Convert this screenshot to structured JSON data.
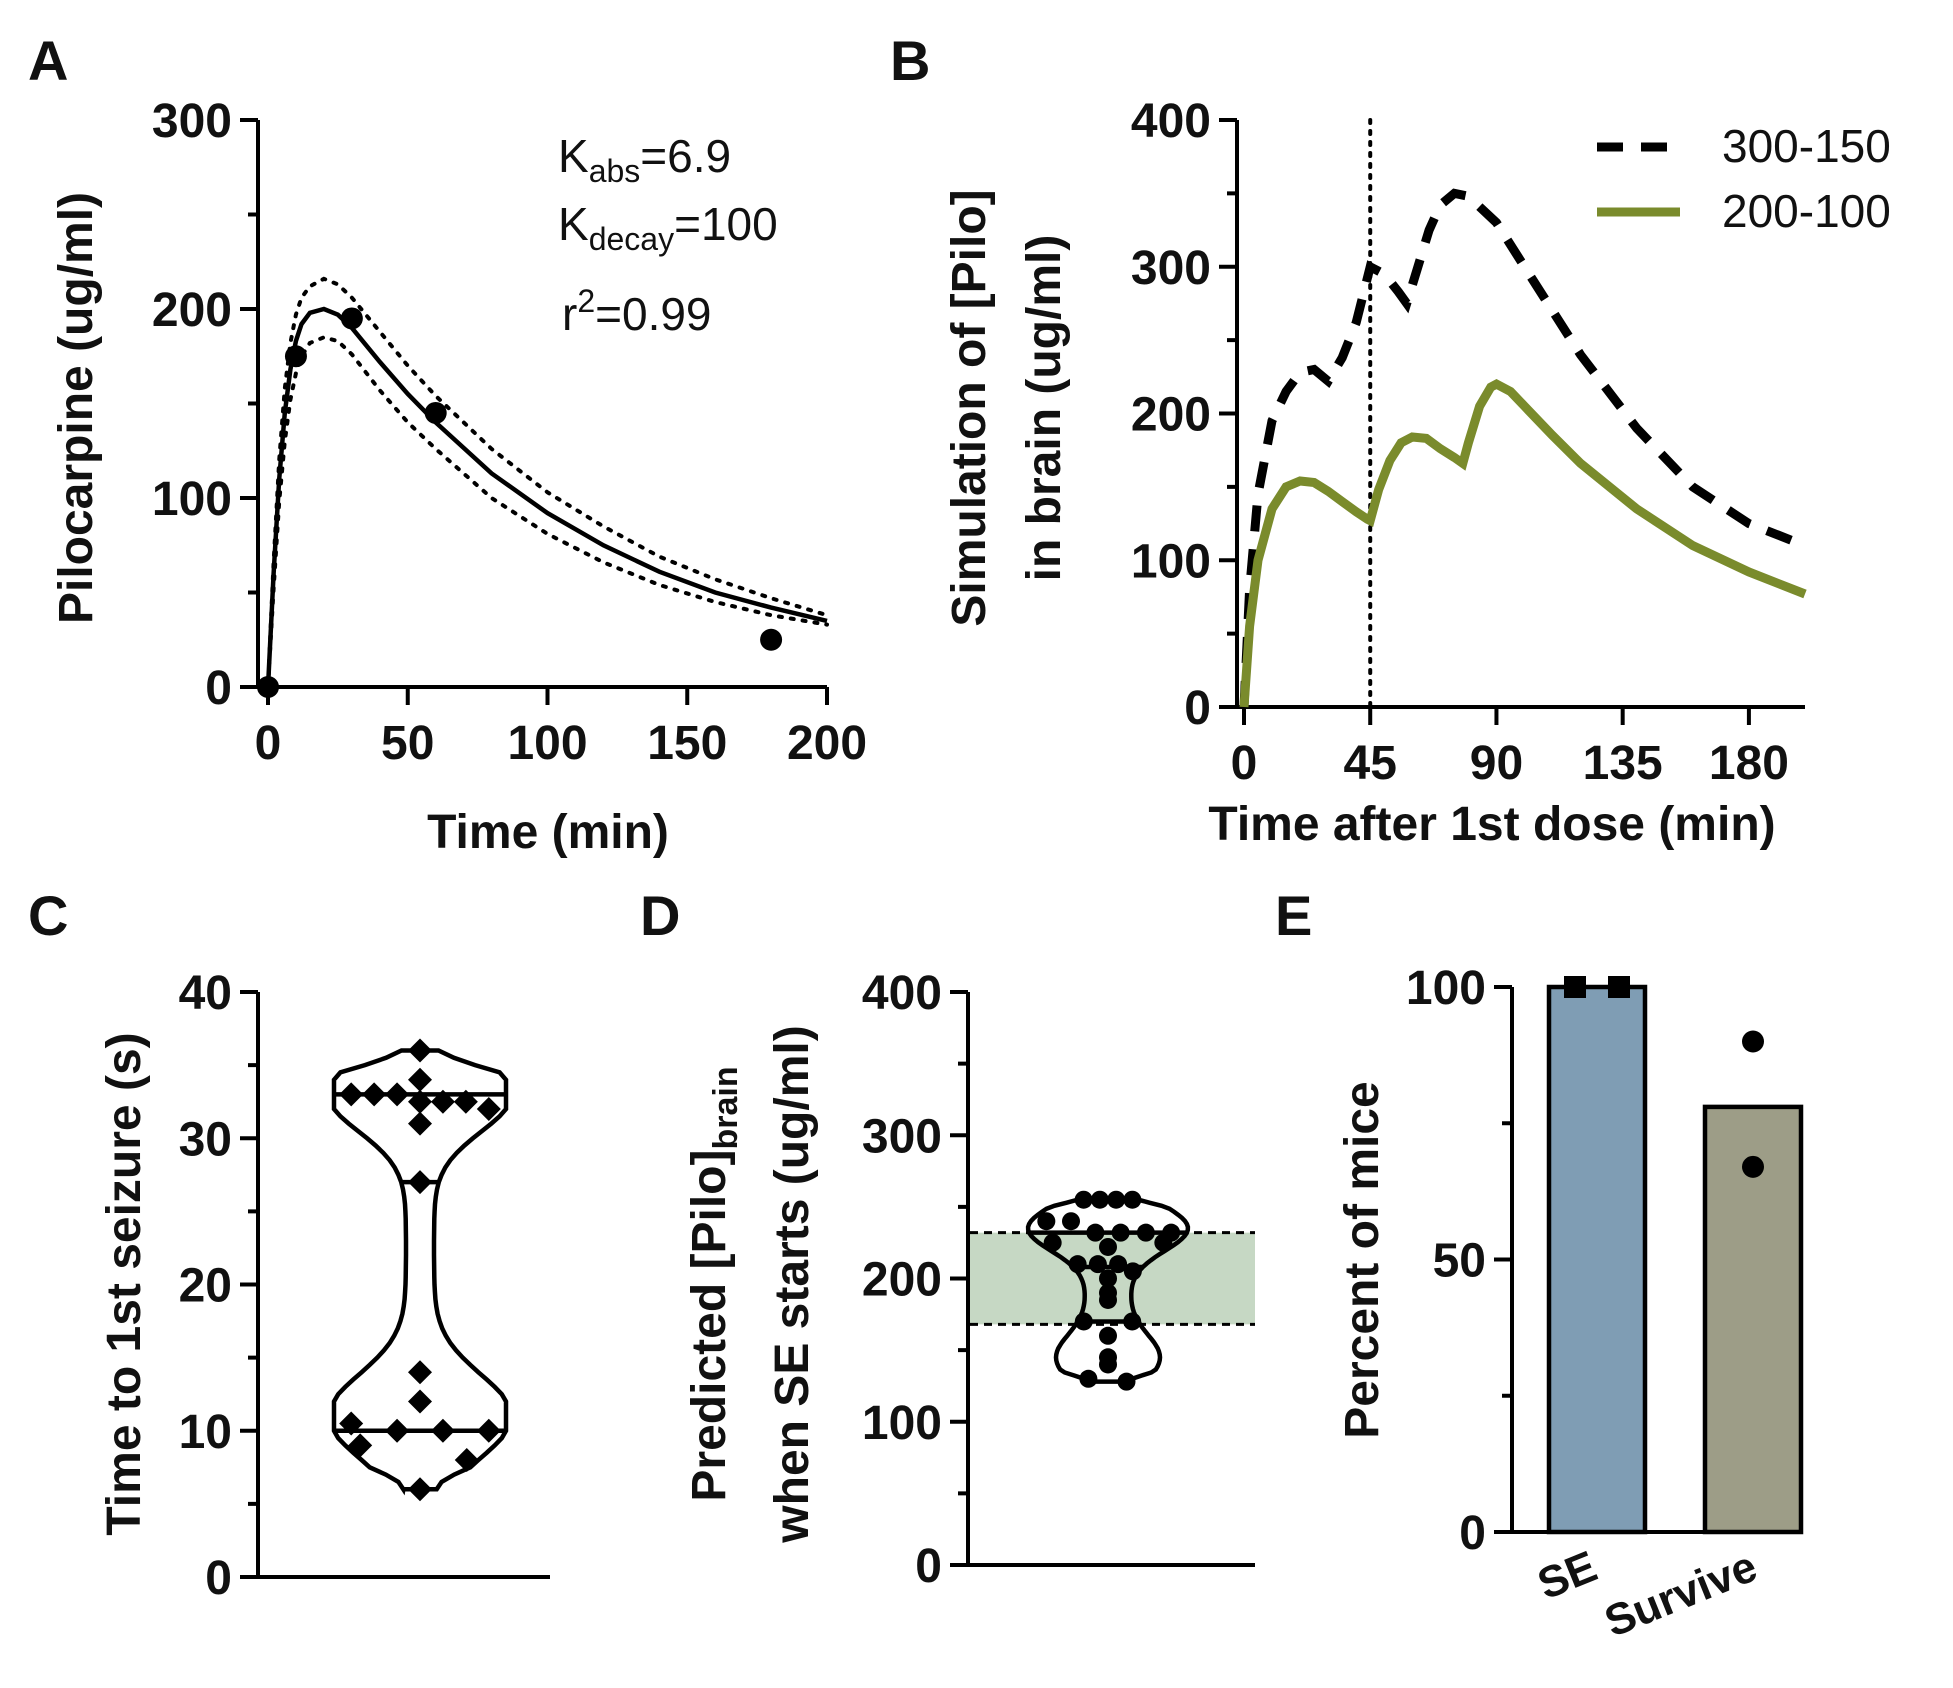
{
  "chart_data": [
    {
      "panel": "A",
      "type": "scatter",
      "ylabel": "Pilocarpine (ug/ml)",
      "xlabel": "Time (min)",
      "xlim": [
        0,
        200
      ],
      "ylim": [
        0,
        300
      ],
      "xticks": [
        "0",
        "50",
        "100",
        "150",
        "200"
      ],
      "yticks": [
        "0",
        "100",
        "200",
        "300"
      ],
      "points": [
        [
          0,
          0
        ],
        [
          10,
          175
        ],
        [
          30,
          195
        ],
        [
          60,
          145
        ],
        [
          180,
          25
        ]
      ],
      "fit": [
        [
          0,
          0
        ],
        [
          2,
          60
        ],
        [
          4,
          110
        ],
        [
          6,
          145
        ],
        [
          8,
          168
        ],
        [
          10,
          183
        ],
        [
          12,
          192
        ],
        [
          15,
          198
        ],
        [
          20,
          200
        ],
        [
          25,
          197
        ],
        [
          30,
          190
        ],
        [
          40,
          172
        ],
        [
          50,
          155
        ],
        [
          60,
          140
        ],
        [
          80,
          113
        ],
        [
          100,
          92
        ],
        [
          120,
          75
        ],
        [
          140,
          61
        ],
        [
          160,
          50
        ],
        [
          180,
          42
        ],
        [
          200,
          35
        ]
      ],
      "ci_upper": [
        [
          0,
          0
        ],
        [
          2,
          66
        ],
        [
          4,
          120
        ],
        [
          6,
          158
        ],
        [
          8,
          182
        ],
        [
          10,
          197
        ],
        [
          12,
          206
        ],
        [
          15,
          212
        ],
        [
          20,
          216
        ],
        [
          25,
          213
        ],
        [
          30,
          206
        ],
        [
          40,
          188
        ],
        [
          50,
          170
        ],
        [
          60,
          154
        ],
        [
          80,
          126
        ],
        [
          100,
          103
        ],
        [
          120,
          85
        ],
        [
          140,
          69
        ],
        [
          160,
          57
        ],
        [
          180,
          47
        ],
        [
          200,
          38
        ]
      ],
      "ci_lower": [
        [
          0,
          0
        ],
        [
          2,
          52
        ],
        [
          4,
          98
        ],
        [
          6,
          130
        ],
        [
          8,
          152
        ],
        [
          10,
          166
        ],
        [
          12,
          175
        ],
        [
          15,
          182
        ],
        [
          20,
          185
        ],
        [
          25,
          183
        ],
        [
          30,
          176
        ],
        [
          40,
          157
        ],
        [
          50,
          140
        ],
        [
          60,
          126
        ],
        [
          80,
          100
        ],
        [
          100,
          81
        ],
        [
          120,
          66
        ],
        [
          140,
          54
        ],
        [
          160,
          45
        ],
        [
          180,
          38
        ],
        [
          200,
          33
        ]
      ],
      "annotations": {
        "k_abs": {
          "main": "K",
          "sub": "abs",
          "value": "=6.9"
        },
        "k_decay": {
          "main": "K",
          "sub": "decay",
          "value": "=100"
        },
        "r2": {
          "main": "r",
          "sup": "2",
          "value": "=0.99"
        }
      }
    },
    {
      "panel": "B",
      "type": "line",
      "ylabel_lines": [
        "Simulation of [Pilo]",
        "in brain (ug/ml)"
      ],
      "xlabel": "Time after 1st dose (min)",
      "xlim": [
        0,
        200
      ],
      "ylim": [
        0,
        400
      ],
      "xticks": [
        "0",
        "45",
        "90",
        "135",
        "180"
      ],
      "yticks": [
        "0",
        "100",
        "200",
        "300",
        "400"
      ],
      "vline_x": 45,
      "legend": [
        "300-150",
        "200-100"
      ],
      "series": [
        {
          "name": "300-150",
          "style": "dashed",
          "color": "#000000",
          "points": [
            [
              0,
              0
            ],
            [
              2,
              80
            ],
            [
              5,
              145
            ],
            [
              10,
              195
            ],
            [
              15,
              215
            ],
            [
              20,
              228
            ],
            [
              25,
              230
            ],
            [
              30,
              222
            ],
            [
              35,
              238
            ],
            [
              40,
              262
            ],
            [
              45,
              300
            ],
            [
              50,
              295
            ],
            [
              55,
              283
            ],
            [
              58,
              275
            ],
            [
              62,
              300
            ],
            [
              66,
              325
            ],
            [
              70,
              342
            ],
            [
              75,
              350
            ],
            [
              80,
              348
            ],
            [
              90,
              330
            ],
            [
              100,
              300
            ],
            [
              110,
              270
            ],
            [
              120,
              240
            ],
            [
              140,
              190
            ],
            [
              160,
              150
            ],
            [
              180,
              125
            ],
            [
              200,
              110
            ]
          ]
        },
        {
          "name": "200-100",
          "style": "solid",
          "color": "#7a8b2c",
          "points": [
            [
              0,
              0
            ],
            [
              2,
              55
            ],
            [
              5,
              100
            ],
            [
              10,
              135
            ],
            [
              15,
              150
            ],
            [
              20,
              154
            ],
            [
              25,
              153
            ],
            [
              30,
              147
            ],
            [
              35,
              140
            ],
            [
              40,
              133
            ],
            [
              44,
              128
            ],
            [
              45,
              127
            ],
            [
              48,
              148
            ],
            [
              52,
              168
            ],
            [
              56,
              180
            ],
            [
              60,
              184
            ],
            [
              65,
              183
            ],
            [
              70,
              176
            ],
            [
              75,
              170
            ],
            [
              78,
              166
            ],
            [
              80,
              180
            ],
            [
              84,
              205
            ],
            [
              88,
              218
            ],
            [
              90,
              220
            ],
            [
              95,
              215
            ],
            [
              100,
              205
            ],
            [
              110,
              185
            ],
            [
              120,
              166
            ],
            [
              140,
              135
            ],
            [
              160,
              110
            ],
            [
              180,
              92
            ],
            [
              200,
              77
            ]
          ]
        }
      ]
    },
    {
      "panel": "C",
      "type": "violin",
      "ylabel": "Time to 1st seizure (s)",
      "ylim": [
        0,
        40
      ],
      "yticks": [
        "0",
        "10",
        "20",
        "30",
        "40"
      ],
      "quartile_lines": [
        10,
        27,
        33
      ],
      "points": [
        36,
        34,
        33,
        33,
        33,
        32.5,
        32.5,
        32.5,
        32,
        31,
        27,
        14,
        12,
        10.5,
        10,
        10,
        10,
        9,
        8,
        6
      ],
      "marker": "diamond"
    },
    {
      "panel": "D",
      "type": "violin",
      "ylabel_lines": [
        "Predicted [Pilo]brain",
        "when SE starts (ug/ml)"
      ],
      "ylabel_main": "Predicted [Pilo]",
      "ylabel_sub": "brain",
      "ylabel_tail": "when SE starts (ug/ml)",
      "ylim": [
        0,
        400
      ],
      "yticks": [
        "0",
        "100",
        "200",
        "300",
        "400"
      ],
      "band": [
        168,
        232
      ],
      "quartile_lines": [
        170,
        208,
        232
      ],
      "points": [
        255,
        255,
        255,
        255,
        240,
        240,
        232,
        232,
        232,
        232,
        225,
        225,
        222,
        210,
        210,
        210,
        205,
        200,
        190,
        185,
        170,
        170,
        160,
        145,
        140,
        130,
        128
      ],
      "marker": "circle"
    },
    {
      "panel": "E",
      "type": "bar",
      "ylabel": "Percent of mice",
      "ylim": [
        0,
        100
      ],
      "yticks": [
        "0",
        "50",
        "100"
      ],
      "categories": [
        "SE",
        "Survive"
      ],
      "values": [
        100,
        78
      ],
      "colors": [
        "#7f9db4",
        "#9d9d87"
      ],
      "points": [
        [
          100,
          100
        ],
        [
          90,
          67
        ]
      ],
      "markers": [
        "square",
        "circle"
      ]
    }
  ],
  "panel_labels": [
    "A",
    "B",
    "C",
    "D",
    "E"
  ]
}
